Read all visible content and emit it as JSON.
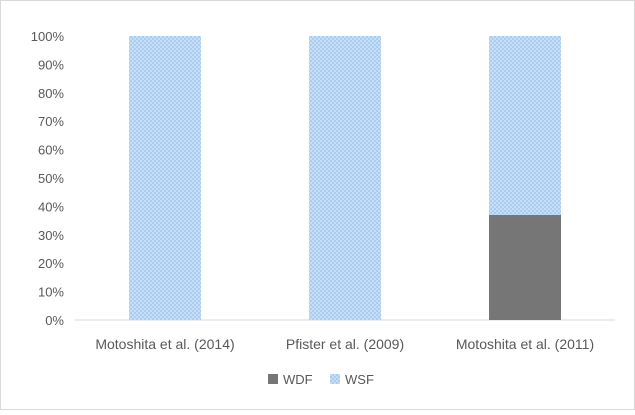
{
  "chart_data": {
    "type": "bar",
    "stacked": true,
    "percent_stacked": true,
    "categories": [
      "Motoshita et al. (2014)",
      "Pfister et al. (2009)",
      "Motoshita et al. (2011)"
    ],
    "series": [
      {
        "name": "WDF",
        "values": [
          0,
          0,
          37
        ],
        "color": "#767676"
      },
      {
        "name": "WSF",
        "values": [
          100,
          100,
          63
        ],
        "color": "#a9cdf0"
      }
    ],
    "y_ticks": [
      "0%",
      "10%",
      "20%",
      "30%",
      "40%",
      "50%",
      "60%",
      "70%",
      "80%",
      "90%",
      "100%"
    ],
    "ylim": [
      0,
      100
    ],
    "grid": false,
    "legend_position": "bottom"
  }
}
